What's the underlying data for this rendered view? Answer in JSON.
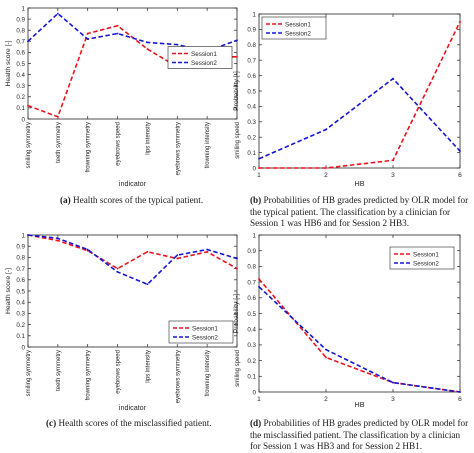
{
  "panels": [
    {
      "id": "a",
      "type": "line",
      "caption_letter": "(a)",
      "caption_text": "Health scores of the typical patient.",
      "xlabel": "indicator",
      "ylabel": "Health score [-]",
      "categories": [
        "smiling symmetry",
        "teeth symmetry",
        "frowning symmetry",
        "eyebrows speed",
        "lips intensity",
        "eyebrows symmetry",
        "frowning intensity",
        "smiling speed"
      ],
      "ylim": [
        0,
        1
      ],
      "yticks": [
        0,
        0.1,
        0.2,
        0.3,
        0.4,
        0.5,
        0.6,
        0.7,
        0.8,
        0.9,
        1
      ],
      "ytick_labels": [
        "0",
        "0.1",
        "0.2",
        "0.3",
        "0.4",
        "0.5",
        "0.6",
        "0.7",
        "0.8",
        "0.9",
        "1"
      ],
      "legend_position": "center-right",
      "series": [
        {
          "name": "Session1",
          "color": "#e8141e",
          "values": [
            0.12,
            0.02,
            0.77,
            0.84,
            0.63,
            0.47,
            0.56,
            0.56
          ]
        },
        {
          "name": "Session2",
          "color": "#1515d6",
          "values": [
            0.7,
            0.95,
            0.72,
            0.77,
            0.69,
            0.67,
            0.61,
            0.71
          ]
        }
      ]
    },
    {
      "id": "b",
      "type": "line",
      "caption_letter": "(b)",
      "caption_text": "Probabilities of HB grades predicted by OLR model for the typical patient. The classification by a clinician for Session 1 was HB6 and for Session 2 HB3.",
      "xlabel": "HB",
      "ylabel": "Probability [-]",
      "categories": [
        "1",
        "2",
        "3",
        "6"
      ],
      "ylim": [
        0,
        1
      ],
      "yticks": [
        0,
        0.1,
        0.2,
        0.3,
        0.4,
        0.5,
        0.6,
        0.7,
        0.8,
        0.9,
        1
      ],
      "ytick_labels": [
        "0",
        "0.1",
        "0.2",
        "0.3",
        "0.4",
        "0.5",
        "0.6",
        "0.7",
        "0.8",
        "0.9",
        "1"
      ],
      "legend_position": "top-left",
      "series": [
        {
          "name": "Session1",
          "color": "#e8141e",
          "values": [
            0.0,
            0.0,
            0.05,
            0.95
          ]
        },
        {
          "name": "Session2",
          "color": "#1515d6",
          "values": [
            0.06,
            0.25,
            0.58,
            0.11
          ]
        }
      ]
    },
    {
      "id": "c",
      "type": "line",
      "caption_letter": "(c)",
      "caption_text": "Health scores of the misclassified patient.",
      "xlabel": "indicator",
      "ylabel": "Health score [-]",
      "categories": [
        "smiling symmetry",
        "teeth symmetry",
        "frowning symmetry",
        "eyebrows speed",
        "lips intensity",
        "eyebrows symmetry",
        "frowning intensity",
        "smiling speed"
      ],
      "ylim": [
        0,
        1
      ],
      "yticks": [
        0,
        0.1,
        0.2,
        0.3,
        0.4,
        0.5,
        0.6,
        0.7,
        0.8,
        0.9,
        1
      ],
      "ytick_labels": [
        "0",
        "0.1",
        "0.2",
        "0.3",
        "0.4",
        "0.5",
        "0.6",
        "0.7",
        "0.8",
        "0.9",
        "1"
      ],
      "legend_position": "bottom-right",
      "series": [
        {
          "name": "Session1",
          "color": "#e8141e",
          "values": [
            1.0,
            0.95,
            0.86,
            0.7,
            0.85,
            0.79,
            0.85,
            0.7
          ]
        },
        {
          "name": "Session2",
          "color": "#1515d6",
          "values": [
            1.0,
            0.97,
            0.87,
            0.67,
            0.56,
            0.82,
            0.87,
            0.79
          ]
        }
      ]
    },
    {
      "id": "d",
      "type": "line",
      "caption_letter": "(d)",
      "caption_text": "Probabilities of HB grades predicted by OLR model for the misclassified patient. The classification by a clinician for Session 1 was HB3 and for Session 2 HB1.",
      "xlabel": "HB",
      "ylabel": "Probability [-]",
      "categories": [
        "1",
        "2",
        "3",
        "6"
      ],
      "ylim": [
        0,
        1
      ],
      "yticks": [
        0,
        0.1,
        0.2,
        0.3,
        0.4,
        0.5,
        0.6,
        0.7,
        0.8,
        0.9,
        1
      ],
      "ytick_labels": [
        "0",
        "0.1",
        "0.2",
        "0.3",
        "0.4",
        "0.5",
        "0.6",
        "0.7",
        "0.8",
        "0.9",
        "1"
      ],
      "legend_position": "top-right",
      "series": [
        {
          "name": "Session1",
          "color": "#e8141e",
          "values": [
            0.72,
            0.22,
            0.06,
            0.0
          ]
        },
        {
          "name": "Session2",
          "color": "#1515d6",
          "values": [
            0.67,
            0.27,
            0.06,
            0.0
          ]
        }
      ]
    }
  ],
  "chart_data": [
    {
      "type": "line",
      "title": "",
      "xlabel": "indicator",
      "ylabel": "Health score [-]",
      "categories": [
        "smiling symmetry",
        "teeth symmetry",
        "frowning symmetry",
        "eyebrows speed",
        "lips intensity",
        "eyebrows symmetry",
        "frowning intensity",
        "smiling speed"
      ],
      "ylim": [
        0,
        1
      ],
      "series": [
        {
          "name": "Session1",
          "values": [
            0.12,
            0.02,
            0.77,
            0.84,
            0.63,
            0.47,
            0.56,
            0.56
          ]
        },
        {
          "name": "Session2",
          "values": [
            0.7,
            0.95,
            0.72,
            0.77,
            0.69,
            0.67,
            0.61,
            0.71
          ]
        }
      ]
    },
    {
      "type": "line",
      "title": "",
      "xlabel": "HB",
      "ylabel": "Probability [-]",
      "categories": [
        "1",
        "2",
        "3",
        "6"
      ],
      "ylim": [
        0,
        1
      ],
      "series": [
        {
          "name": "Session1",
          "values": [
            0.0,
            0.0,
            0.05,
            0.95
          ]
        },
        {
          "name": "Session2",
          "values": [
            0.06,
            0.25,
            0.58,
            0.11
          ]
        }
      ]
    },
    {
      "type": "line",
      "title": "",
      "xlabel": "indicator",
      "ylabel": "Health score [-]",
      "categories": [
        "smiling symmetry",
        "teeth symmetry",
        "frowning symmetry",
        "eyebrows speed",
        "lips intensity",
        "eyebrows symmetry",
        "frowning intensity",
        "smiling speed"
      ],
      "ylim": [
        0,
        1
      ],
      "series": [
        {
          "name": "Session1",
          "values": [
            1.0,
            0.95,
            0.86,
            0.7,
            0.85,
            0.79,
            0.85,
            0.7
          ]
        },
        {
          "name": "Session2",
          "values": [
            1.0,
            0.97,
            0.87,
            0.67,
            0.56,
            0.82,
            0.87,
            0.79
          ]
        }
      ]
    },
    {
      "type": "line",
      "title": "",
      "xlabel": "HB",
      "ylabel": "Probability [-]",
      "categories": [
        "1",
        "2",
        "3",
        "6"
      ],
      "ylim": [
        0,
        1
      ],
      "series": [
        {
          "name": "Session1",
          "values": [
            0.72,
            0.22,
            0.06,
            0.0
          ]
        },
        {
          "name": "Session2",
          "values": [
            0.67,
            0.27,
            0.06,
            0.0
          ]
        }
      ]
    }
  ]
}
